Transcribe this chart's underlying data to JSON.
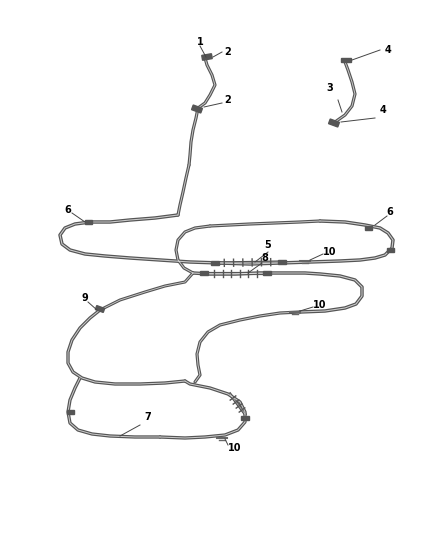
{
  "background_color": "#ffffff",
  "line_color": "#888888",
  "line_color2": "#aaaaaa",
  "line_width": 1.2,
  "label_color": "#000000",
  "label_fontsize": 7,
  "fig_width": 4.38,
  "fig_height": 5.33,
  "dpi": 100,
  "connector_color": "#555555",
  "leader_color": "#444444"
}
